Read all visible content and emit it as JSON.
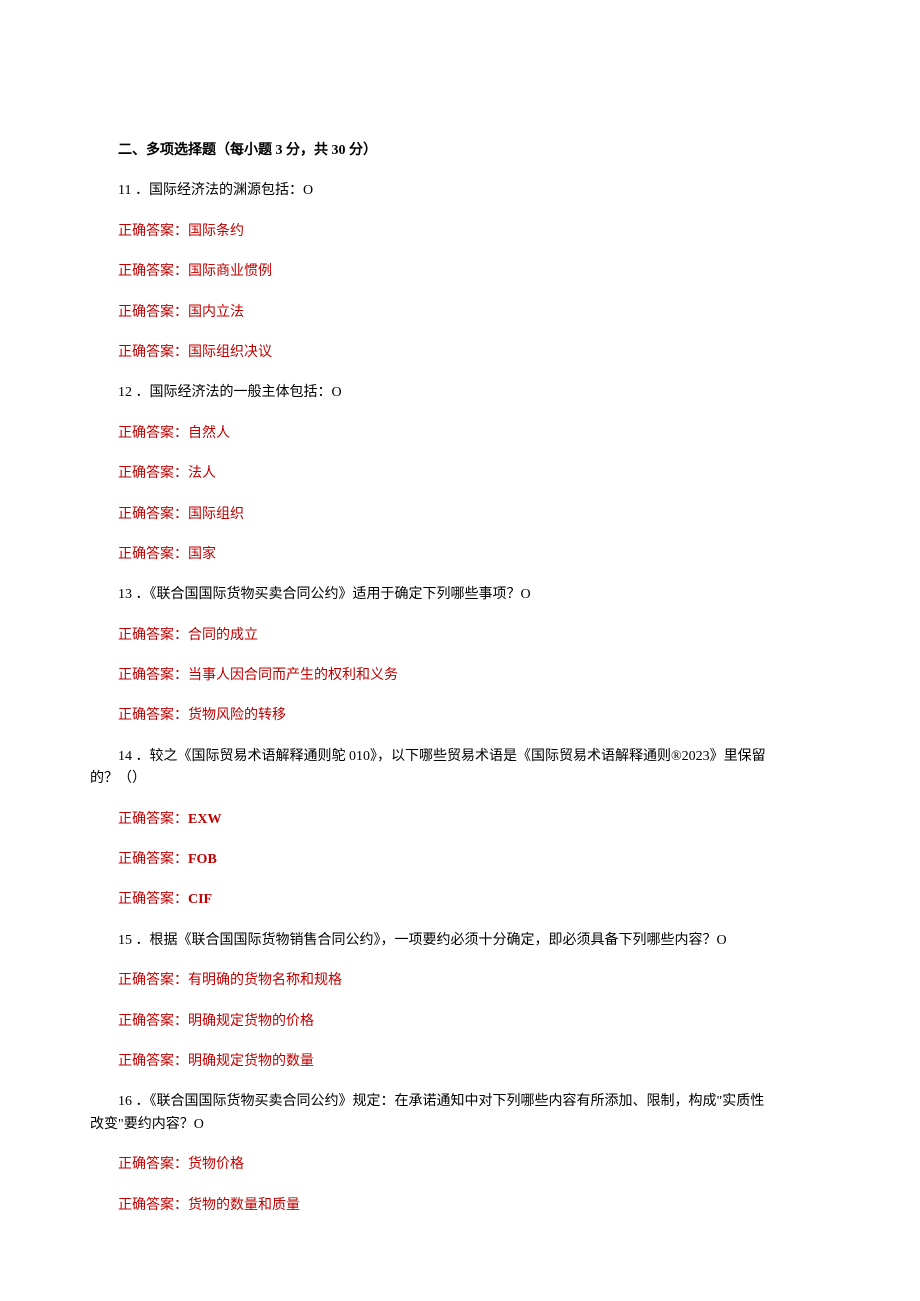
{
  "section_title": "二、多项选择题（每小题 3 分，共 30 分）",
  "questions": [
    {
      "number": "11",
      "text": "．国际经济法的渊源包括：O",
      "answers": [
        {
          "label": "正确答案：",
          "value": "国际条约"
        },
        {
          "label": "正确答案：",
          "value": "国际商业惯例"
        },
        {
          "label": "正确答案：",
          "value": "国内立法"
        },
        {
          "label": "正确答案：",
          "value": "国际组织决议"
        }
      ]
    },
    {
      "number": "12",
      "text": "．国际经济法的一般主体包括：O",
      "answers": [
        {
          "label": "正确答案：",
          "value": "自然人"
        },
        {
          "label": "正确答案：",
          "value": "法人"
        },
        {
          "label": "正确答案：",
          "value": "国际组织"
        },
        {
          "label": "正确答案：",
          "value": "国家"
        }
      ]
    },
    {
      "number": "13",
      "text": "．《联合国国际货物买卖合同公约》适用于确定下列哪些事项？O",
      "answers": [
        {
          "label": "正确答案：",
          "value": "合同的成立"
        },
        {
          "label": "正确答案：",
          "value": "当事人因合同而产生的权利和义务"
        },
        {
          "label": "正确答案：",
          "value": "货物风险的转移"
        }
      ]
    },
    {
      "number": "14",
      "text_line1": "．较之《国际贸易术语解释通则鸵 010》，以下哪些贸易术语是《国际贸易术语解释通则®2023》里保留",
      "text_line2": "的？（）",
      "answers": [
        {
          "label": "正确答案：",
          "value": "EXW",
          "bold": true
        },
        {
          "label": "正确答案：",
          "value": "FOB",
          "bold": true
        },
        {
          "label": "正确答案：",
          "value": "CIF",
          "bold": true
        }
      ]
    },
    {
      "number": "15",
      "text": "．根据《联合国国际货物销售合同公约》，一项要约必须十分确定，即必须具备下列哪些内容？O",
      "answers": [
        {
          "label": "正确答案：",
          "value": "有明确的货物名称和规格"
        },
        {
          "label": "正确答案：",
          "value": "明确规定货物的价格"
        },
        {
          "label": "正确答案：",
          "value": "明确规定货物的数量"
        }
      ]
    },
    {
      "number": "16",
      "text_line1": "．《联合国国际货物买卖合同公约》规定：在承诺通知中对下列哪些内容有所添加、限制，构成\"实质性",
      "text_line2": "改变\"要约内容？O",
      "answers": [
        {
          "label": "正确答案：",
          "value": "货物价格"
        },
        {
          "label": "正确答案：",
          "value": "货物的数量和质量"
        }
      ]
    }
  ]
}
